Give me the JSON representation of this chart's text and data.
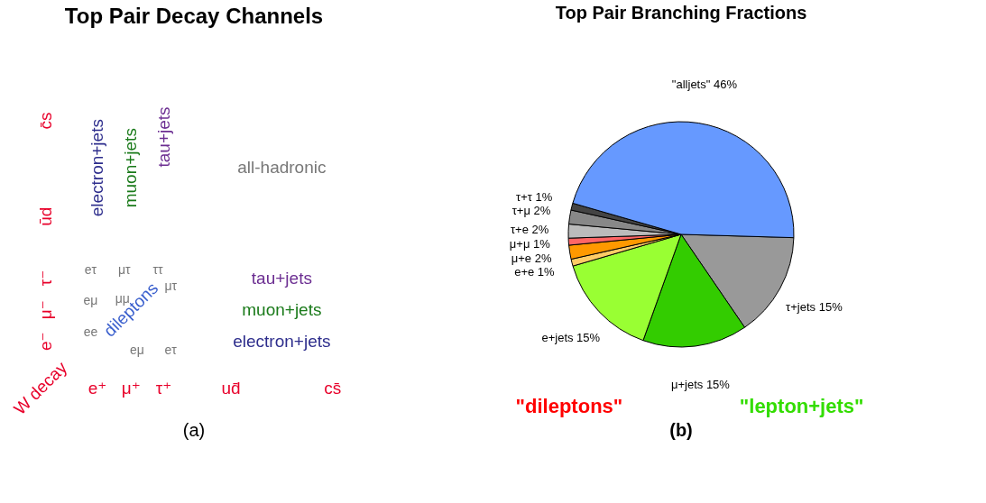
{
  "chart_data": [
    {
      "type": "other",
      "title": "Top Pair Decay Channels",
      "annotations": [
        "c̄s",
        "ūd",
        "τ⁻",
        "μ⁻",
        "e⁻",
        "W decay",
        "e⁺",
        "μ⁺",
        "τ⁺",
        "ud̄",
        "cs̄",
        "electron+jets",
        "muon+jets",
        "tau+jets",
        "all-hadronic",
        "tau+jets",
        "muon+jets",
        "electron+jets",
        "dileptons",
        "eτ",
        "μτ",
        "ττ",
        "eμ",
        "μμ",
        "μτ",
        "ee",
        "eμ",
        "eτ",
        "(a)"
      ]
    },
    {
      "type": "pie",
      "title": "Top Pair Branching Fractions",
      "categories": [
        "τ+jets",
        "μ+jets",
        "e+jets",
        "e+e",
        "μ+e",
        "μ+μ",
        "τ+e",
        "τ+μ",
        "τ+τ",
        "\"alljets\""
      ],
      "values": [
        15,
        15,
        15,
        1,
        2,
        1,
        2,
        2,
        1,
        46
      ],
      "value_labels": [
        "15%",
        "15%",
        "15%",
        "1%",
        "2%",
        "1%",
        "2%",
        "2%",
        "1%",
        "46%"
      ],
      "colors": [
        "#999999",
        "#33cc00",
        "#99ff33",
        "#ffcc66",
        "#ff9900",
        "#ff6666",
        "#bbbbbb",
        "#888888",
        "#444444",
        "#6699ff"
      ],
      "annotations": [
        "\"dileptons\"",
        "\"lepton+jets\"",
        "(b)"
      ]
    }
  ]
}
